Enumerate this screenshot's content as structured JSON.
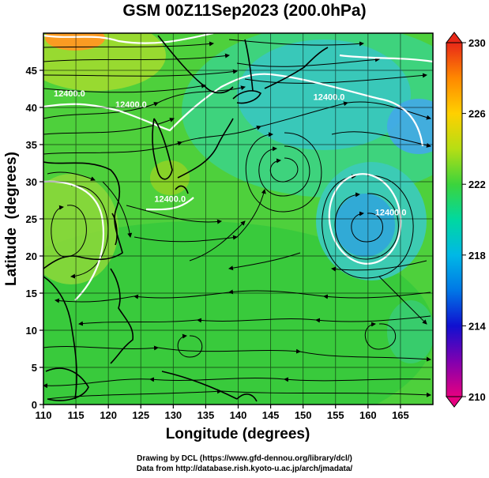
{
  "title": "GSM 00Z11Sep2023 (200.0hPa)",
  "map": {
    "xlabel": "Longitude (degrees)",
    "ylabel": "Latitude  (degrees)",
    "xlim": [
      110,
      170
    ],
    "ylim": [
      0,
      50
    ],
    "x_ticks": [
      110,
      115,
      120,
      125,
      130,
      135,
      140,
      145,
      150,
      155,
      160,
      165
    ],
    "y_ticks": [
      0,
      5,
      10,
      15,
      20,
      25,
      30,
      35,
      40,
      45
    ],
    "grid": true,
    "field": "temperature (shaded) with wind streamlines and geopotential height contours",
    "contour_labels": [
      {
        "text": "12400.0",
        "lon": 114.0,
        "lat": 41.5
      },
      {
        "text": "12400.0",
        "lon": 123.5,
        "lat": 40.0
      },
      {
        "text": "12400.0",
        "lon": 154.0,
        "lat": 41.0
      },
      {
        "text": "12400.0",
        "lon": 129.5,
        "lat": 27.3
      },
      {
        "text": "12400.0",
        "lon": 163.5,
        "lat": 25.5
      }
    ]
  },
  "colorbar": {
    "range": [
      210,
      230
    ],
    "tick_labels": [
      "230",
      "226",
      "222",
      "218",
      "214",
      "210"
    ],
    "colors": [
      "#e60080",
      "#8000b0",
      "#1010d0",
      "#0077e6",
      "#00b8e6",
      "#00d8a0",
      "#3cd43c",
      "#b6de14",
      "#ffd000",
      "#ff8800",
      "#e82818"
    ]
  },
  "credits": {
    "line1": "Drawing by DCL (https://www.gfd-dennou.org/library/dcl/)",
    "line2": "Data from http://database.rish.kyoto-u.ac.jp/arch/jmadata/"
  },
  "colors": {
    "land_outline": "#000000",
    "contour": "#ffffff",
    "streamline": "#000000"
  }
}
